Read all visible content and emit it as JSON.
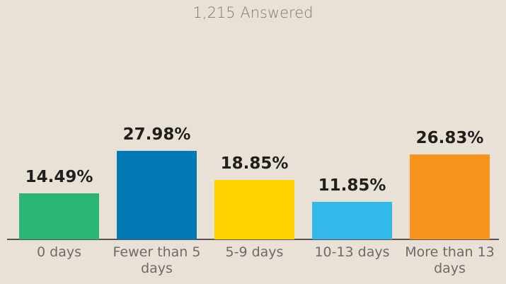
{
  "chart_data": {
    "type": "bar",
    "subtitle": "1,215 Answered",
    "categories": [
      "0 days",
      "Fewer than 5 days",
      "5-9 days",
      "10-13 days",
      "More than 13 days"
    ],
    "values": [
      14.49,
      27.98,
      18.85,
      11.85,
      26.83
    ],
    "value_labels": [
      "14.49%",
      "27.98%",
      "18.85%",
      "11.85%",
      "26.83%"
    ],
    "colors": [
      "#2bb673",
      "#0079b5",
      "#ffd200",
      "#34b8ea",
      "#f7941d"
    ]
  }
}
